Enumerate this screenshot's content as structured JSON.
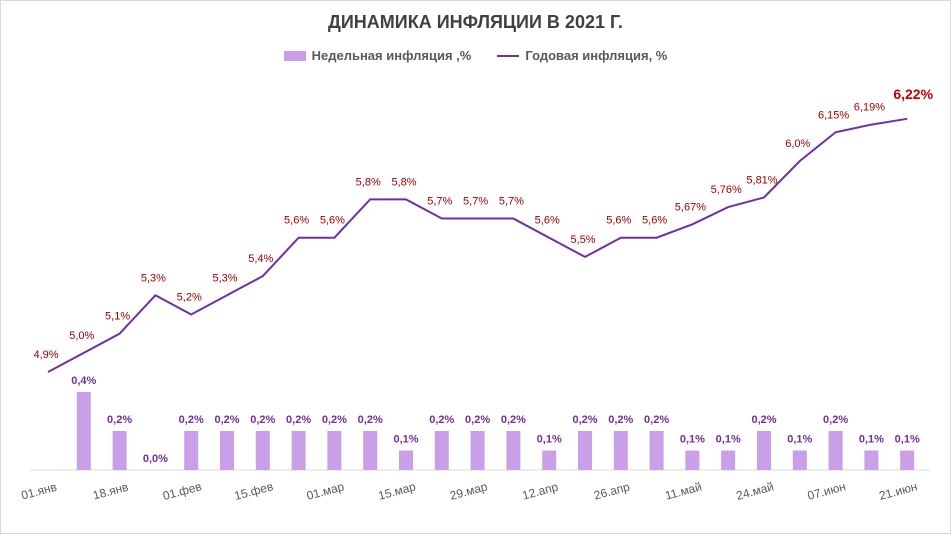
{
  "chart_data": {
    "type": "bar+line",
    "title": "ДИНАМИКА ИНФЛЯЦИИ В 2021 Г.",
    "legend": {
      "position": "top-center",
      "items": [
        "Недельная инфляция ,%",
        "Годовая инфляция, %"
      ]
    },
    "x_tick_labels": [
      "01.янв",
      "18.янв",
      "01.фев",
      "15.фев",
      "01.мар",
      "15.мар",
      "29.мар",
      "12.апр",
      "26.апр",
      "11.май",
      "24.май",
      "07.июн",
      "21.июн"
    ],
    "series": [
      {
        "name": "Годовая инфляция, %",
        "kind": "line",
        "color": "#7030a0",
        "values": [
          4.9,
          5.0,
          5.1,
          5.3,
          5.2,
          5.3,
          5.4,
          5.6,
          5.6,
          5.8,
          5.8,
          5.7,
          5.7,
          5.7,
          5.6,
          5.5,
          5.6,
          5.6,
          5.67,
          5.76,
          5.81,
          6.0,
          6.15,
          6.19,
          6.22
        ],
        "labels": [
          "4,9%",
          "5,0%",
          "5,1%",
          "5,3%",
          "5,2%",
          "5,3%",
          "5,4%",
          "5,6%",
          "5,6%",
          "5,8%",
          "5,8%",
          "5,7%",
          "5,7%",
          "5,7%",
          "5,6%",
          "5,5%",
          "5,6%",
          "5,6%",
          "5,67%",
          "5,76%",
          "5,81%",
          "6,0%",
          "6,15%",
          "6,19%",
          "6,22%"
        ]
      },
      {
        "name": "Недельная инфляция ,%",
        "kind": "bar",
        "color": "#c9a0e8",
        "values": [
          null,
          0.4,
          0.2,
          0.0,
          0.2,
          0.2,
          0.2,
          0.2,
          0.2,
          0.2,
          0.1,
          0.2,
          0.2,
          0.2,
          0.1,
          0.2,
          0.2,
          0.2,
          0.1,
          0.1,
          0.2,
          0.1,
          0.2,
          0.1,
          0.1
        ],
        "labels": [
          "",
          "0,4%",
          "0,2%",
          "0,0%",
          "0,2%",
          "0,2%",
          "0,2%",
          "0,2%",
          "0,2%",
          "0,2%",
          "0,1%",
          "0,2%",
          "0,2%",
          "0,2%",
          "0,1%",
          "0,2%",
          "0,2%",
          "0,2%",
          "0,1%",
          "0,1%",
          "0,2%",
          "0,1%",
          "0,2%",
          "0,1%",
          "0,1%"
        ]
      }
    ],
    "grid": false
  }
}
